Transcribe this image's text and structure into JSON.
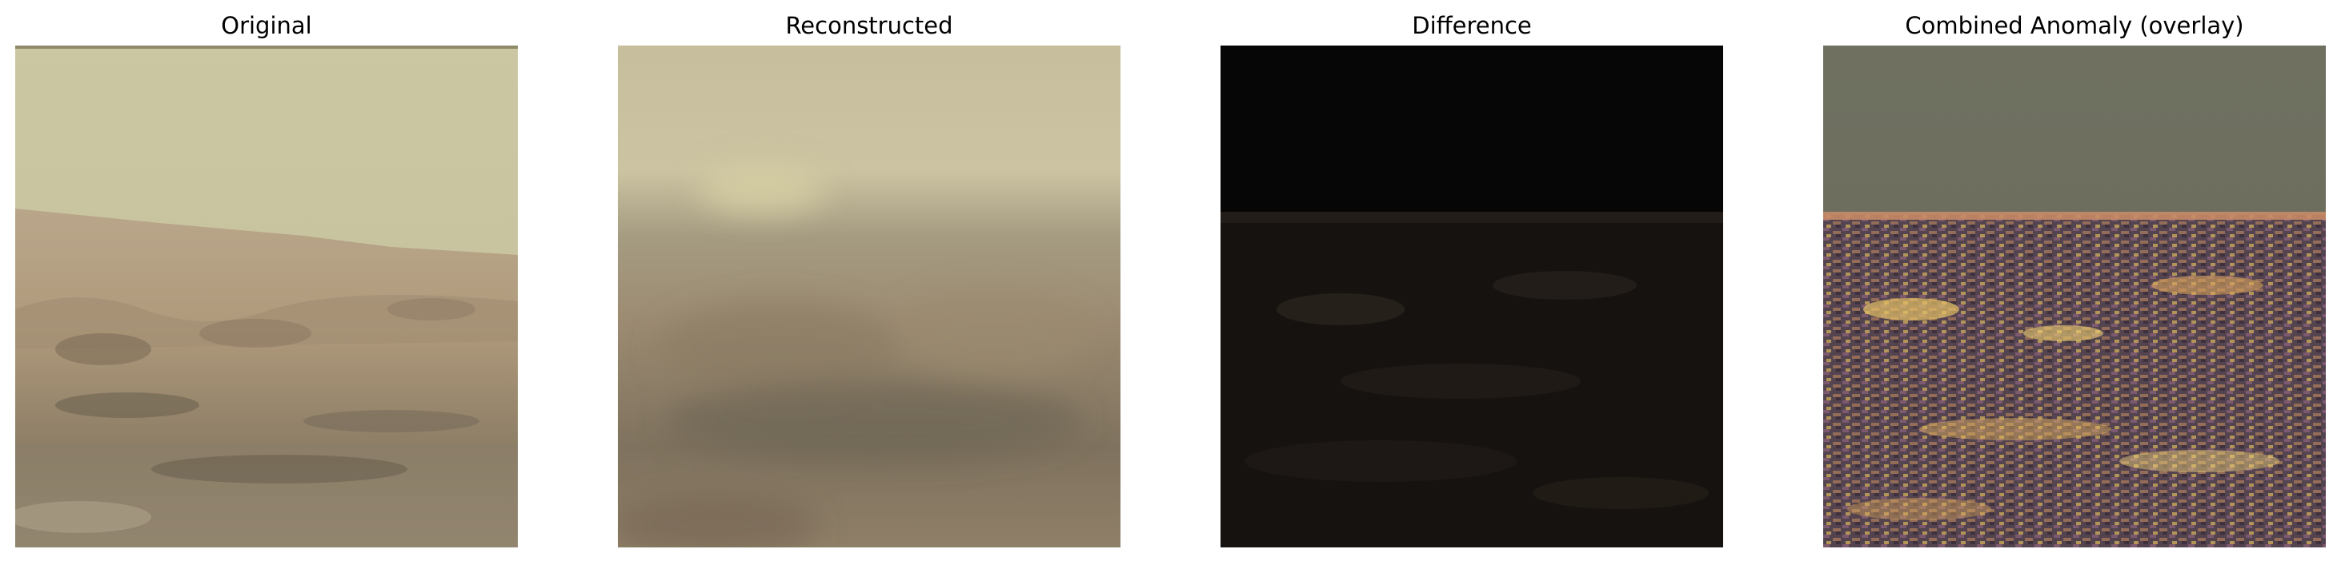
{
  "panels": [
    {
      "title": "Original"
    },
    {
      "title": "Reconstructed"
    },
    {
      "title": "Difference"
    },
    {
      "title": "Combined Anomaly (overlay)"
    }
  ]
}
